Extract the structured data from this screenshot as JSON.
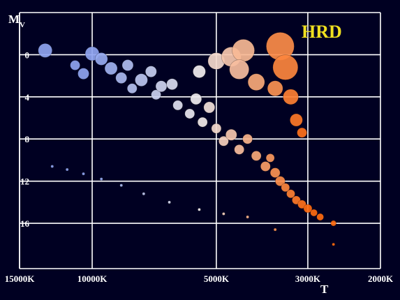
{
  "chart_data": {
    "type": "scatter",
    "title": "HRD",
    "xlabel": "T",
    "ylabel": "M",
    "ylabel_sub": "V",
    "x_scale": "log-reversed",
    "xlim": [
      15000,
      2000
    ],
    "ylim": [
      20.3,
      -4
    ],
    "x_ticks": [
      {
        "value": 15000,
        "label": "15000K"
      },
      {
        "value": 10000,
        "label": "10000K"
      },
      {
        "value": 5000,
        "label": "5000K"
      },
      {
        "value": 3000,
        "label": "3000K"
      },
      {
        "value": 2000,
        "label": "2000K"
      }
    ],
    "y_ticks": [
      {
        "value": 0,
        "label": "0"
      },
      {
        "value": 4,
        "label": "4"
      },
      {
        "value": 8,
        "label": "8"
      },
      {
        "value": 12,
        "label": "12"
      },
      {
        "value": 16,
        "label": "16"
      }
    ],
    "grid": true,
    "colors": {
      "background": "#000022",
      "grid": "#ffffff",
      "title": "#f0e020",
      "hot": "#8fa4f0",
      "mid": "#f2eef0",
      "cool": "#ff6a10"
    },
    "series": [
      {
        "group": "main-sequence-and-giants",
        "points": [
          {
            "x": 13000,
            "y": -0.4,
            "s": 10
          },
          {
            "x": 10000,
            "y": -0.1,
            "s": 10
          },
          {
            "x": 9500,
            "y": 0.4,
            "s": 9
          },
          {
            "x": 11000,
            "y": 1.0,
            "s": 7
          },
          {
            "x": 10500,
            "y": 1.8,
            "s": 8
          },
          {
            "x": 9000,
            "y": 1.3,
            "s": 9
          },
          {
            "x": 8500,
            "y": 2.2,
            "s": 8
          },
          {
            "x": 8200,
            "y": 1.0,
            "s": 8
          },
          {
            "x": 8000,
            "y": 3.2,
            "s": 7
          },
          {
            "x": 7600,
            "y": 2.4,
            "s": 9
          },
          {
            "x": 7200,
            "y": 1.6,
            "s": 8
          },
          {
            "x": 7000,
            "y": 3.8,
            "s": 7
          },
          {
            "x": 6800,
            "y": 3.0,
            "s": 8
          },
          {
            "x": 6400,
            "y": 2.8,
            "s": 8
          },
          {
            "x": 6200,
            "y": 4.8,
            "s": 7
          },
          {
            "x": 5800,
            "y": 5.6,
            "s": 7
          },
          {
            "x": 5600,
            "y": 4.2,
            "s": 8
          },
          {
            "x": 5400,
            "y": 6.4,
            "s": 7
          },
          {
            "x": 5200,
            "y": 5.0,
            "s": 8
          },
          {
            "x": 5000,
            "y": 7.0,
            "s": 7
          },
          {
            "x": 4800,
            "y": 8.2,
            "s": 7
          },
          {
            "x": 4600,
            "y": 7.6,
            "s": 8
          },
          {
            "x": 4400,
            "y": 9.0,
            "s": 7
          },
          {
            "x": 4200,
            "y": 8.0,
            "s": 7
          },
          {
            "x": 4000,
            "y": 9.6,
            "s": 7
          },
          {
            "x": 3800,
            "y": 10.6,
            "s": 7
          },
          {
            "x": 3700,
            "y": 9.8,
            "s": 6
          },
          {
            "x": 3600,
            "y": 11.2,
            "s": 7
          },
          {
            "x": 3500,
            "y": 12.0,
            "s": 7
          },
          {
            "x": 3400,
            "y": 12.6,
            "s": 6
          },
          {
            "x": 3300,
            "y": 13.2,
            "s": 6
          },
          {
            "x": 3200,
            "y": 13.8,
            "s": 6
          },
          {
            "x": 3100,
            "y": 14.2,
            "s": 6
          },
          {
            "x": 3000,
            "y": 14.6,
            "s": 6
          },
          {
            "x": 2900,
            "y": 15.0,
            "s": 5
          },
          {
            "x": 2800,
            "y": 15.4,
            "s": 5
          },
          {
            "x": 2600,
            "y": 16.0,
            "s": 4
          }
        ]
      },
      {
        "group": "giants",
        "points": [
          {
            "x": 5500,
            "y": 1.6,
            "s": 9
          },
          {
            "x": 5000,
            "y": 0.6,
            "s": 12
          },
          {
            "x": 4600,
            "y": 0.2,
            "s": 14
          },
          {
            "x": 4300,
            "y": -0.4,
            "s": 16
          },
          {
            "x": 4400,
            "y": 1.4,
            "s": 14
          },
          {
            "x": 4000,
            "y": 2.6,
            "s": 12
          },
          {
            "x": 3600,
            "y": 3.2,
            "s": 11
          },
          {
            "x": 3500,
            "y": -0.8,
            "s": 20
          },
          {
            "x": 3400,
            "y": 1.2,
            "s": 18
          },
          {
            "x": 3300,
            "y": 4.0,
            "s": 11
          },
          {
            "x": 3200,
            "y": 6.2,
            "s": 9
          },
          {
            "x": 3100,
            "y": 7.4,
            "s": 7
          }
        ]
      },
      {
        "group": "white-dwarfs",
        "points": [
          {
            "x": 12500,
            "y": 10.6,
            "s": 2
          },
          {
            "x": 11500,
            "y": 10.9,
            "s": 2
          },
          {
            "x": 10500,
            "y": 11.3,
            "s": 2
          },
          {
            "x": 9500,
            "y": 11.8,
            "s": 2
          },
          {
            "x": 8500,
            "y": 12.4,
            "s": 2
          },
          {
            "x": 7500,
            "y": 13.2,
            "s": 2
          },
          {
            "x": 6500,
            "y": 14.0,
            "s": 2
          },
          {
            "x": 5500,
            "y": 14.7,
            "s": 2
          },
          {
            "x": 4800,
            "y": 15.1,
            "s": 2
          },
          {
            "x": 4200,
            "y": 15.4,
            "s": 2
          },
          {
            "x": 3600,
            "y": 16.6,
            "s": 2
          },
          {
            "x": 2600,
            "y": 18.0,
            "s": 2
          }
        ]
      }
    ]
  }
}
